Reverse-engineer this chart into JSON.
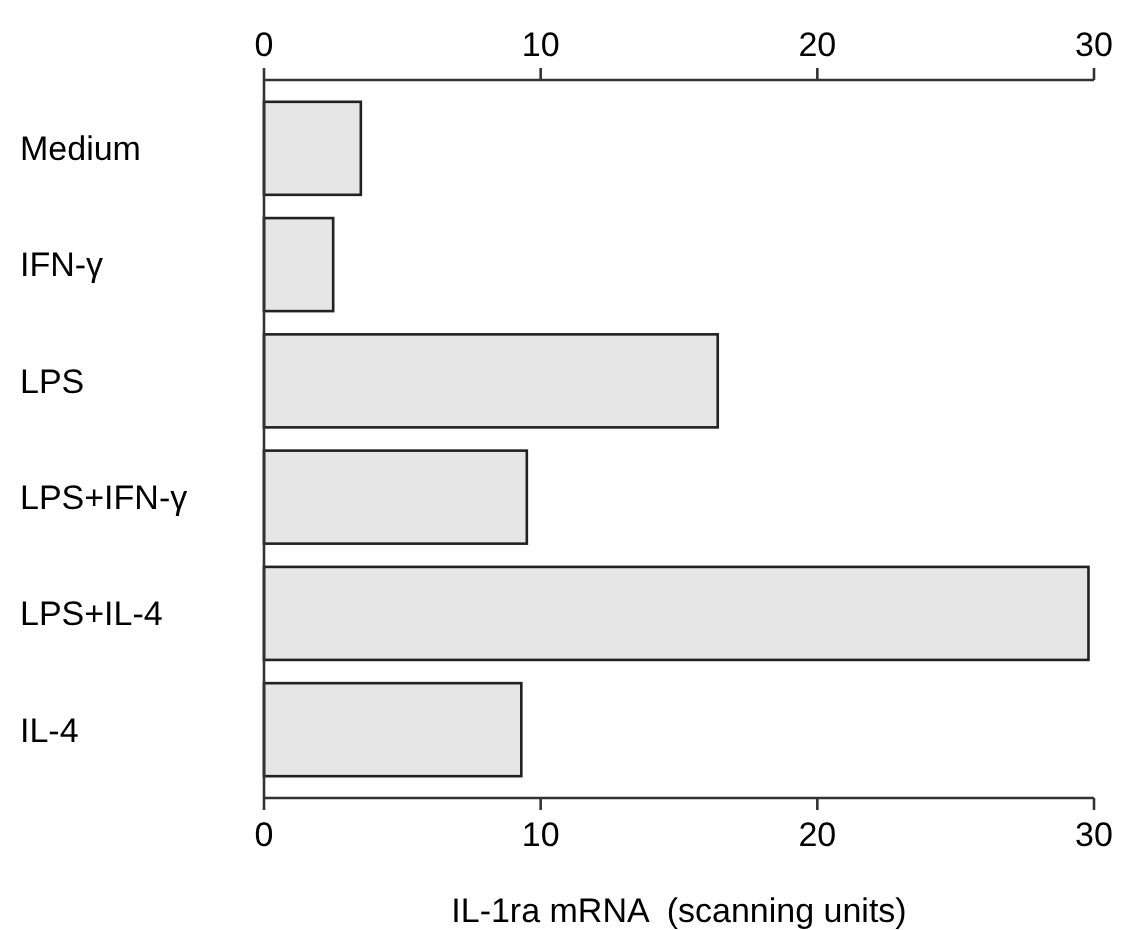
{
  "chart_data": {
    "type": "bar",
    "orientation": "horizontal",
    "categories": [
      "Medium",
      "IFN-γ",
      "LPS",
      "LPS+IFN-γ",
      "LPS+IL-4",
      "IL-4"
    ],
    "values": [
      3.5,
      2.5,
      16.4,
      9.5,
      29.8,
      9.3
    ],
    "color": "#e6e6e6",
    "xlim": [
      0,
      30
    ],
    "xticks": [
      0,
      10,
      20,
      30
    ],
    "x2lim": [
      0,
      30
    ],
    "x2ticks": [
      0,
      10,
      20,
      30
    ],
    "xlabel": "IL-1ra mRNA  (scanning units)",
    "grid": false
  }
}
